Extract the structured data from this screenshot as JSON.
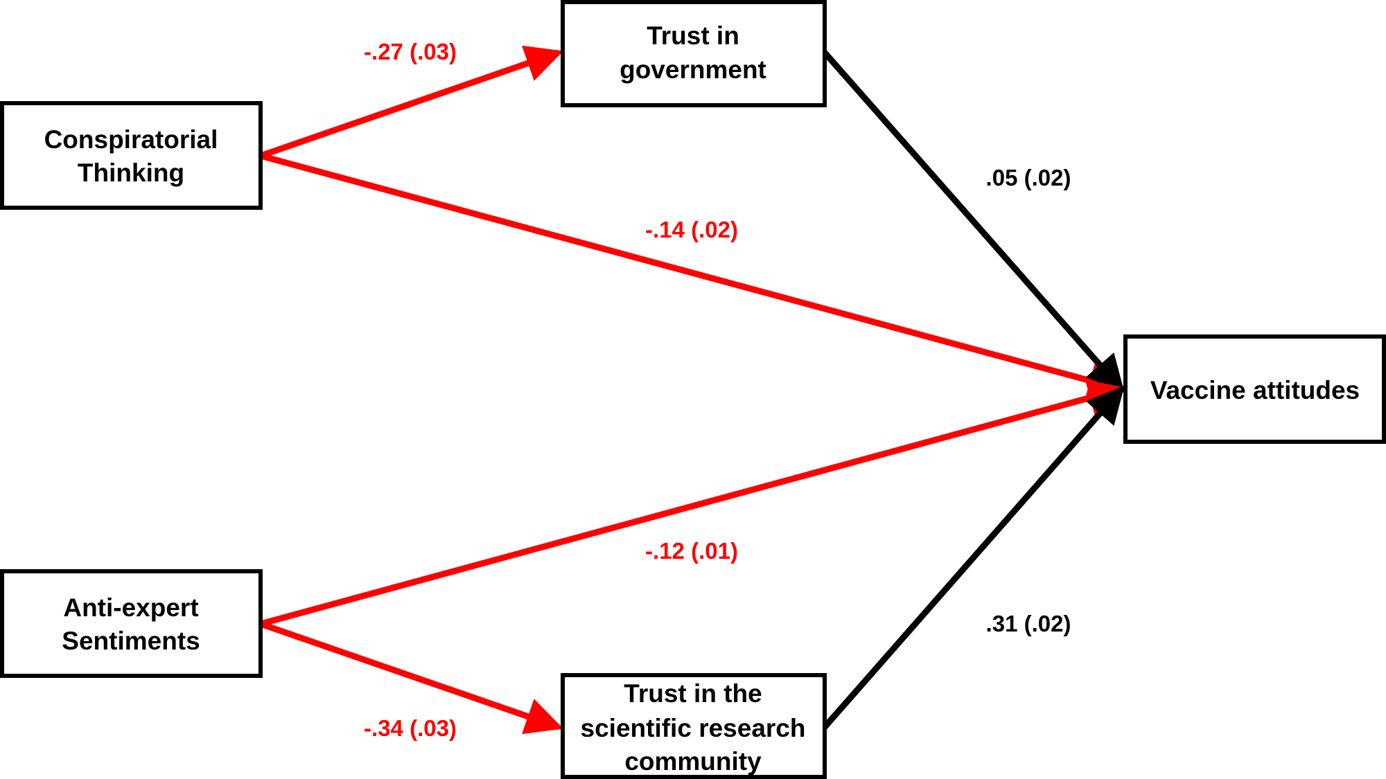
{
  "colors": {
    "negative": "#ff0000",
    "positive": "#000000"
  },
  "nodes": {
    "conspiratorial": {
      "line1": "Conspiratorial",
      "line2": "Thinking"
    },
    "antiexpert": {
      "line1": "Anti-expert",
      "line2": "Sentiments"
    },
    "trust_gov": {
      "line1": "Trust in",
      "line2": "government"
    },
    "trust_sci": {
      "line1": "Trust in the",
      "line2": "scientific research",
      "line3": "community"
    },
    "vaccine": {
      "line1": "Vaccine attitudes"
    }
  },
  "paths": [
    {
      "from": "Conspiratorial Thinking",
      "to": "Trust in government",
      "label": "-.27 (.03)",
      "coef": -0.27,
      "se": 0.03
    },
    {
      "from": "Conspiratorial Thinking",
      "to": "Vaccine attitudes",
      "label": "-.14 (.02)",
      "coef": -0.14,
      "se": 0.02
    },
    {
      "from": "Trust in government",
      "to": "Vaccine attitudes",
      "label": ".05 (.02)",
      "coef": 0.05,
      "se": 0.02
    },
    {
      "from": "Anti-expert Sentiments",
      "to": "Vaccine attitudes",
      "label": "-.12 (.01)",
      "coef": -0.12,
      "se": 0.01
    },
    {
      "from": "Anti-expert Sentiments",
      "to": "Trust in the scientific research community",
      "label": "-.34 (.03)",
      "coef": -0.34,
      "se": 0.03
    },
    {
      "from": "Trust in the scientific research community",
      "to": "Vaccine attitudes",
      "label": ".31 (.02)",
      "coef": 0.31,
      "se": 0.02
    }
  ]
}
